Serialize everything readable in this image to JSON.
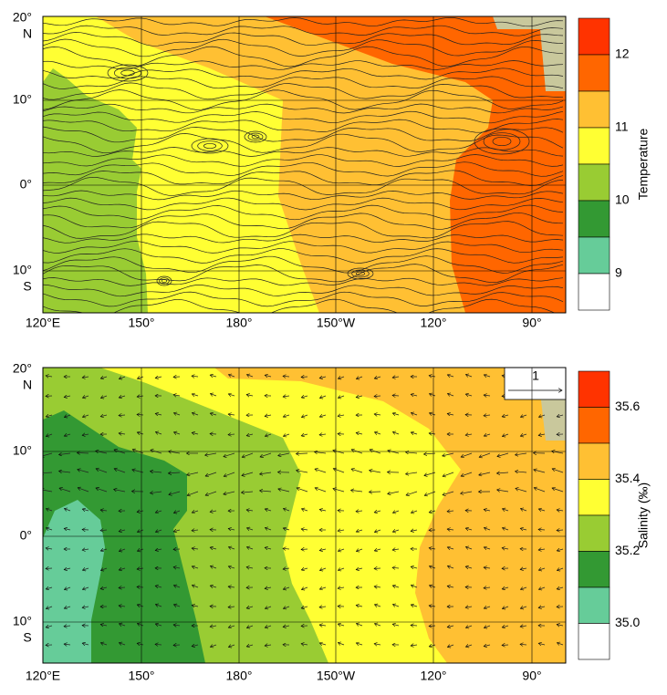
{
  "panels": [
    {
      "x_labels": [
        "120°E",
        "150°",
        "180°",
        "150°W",
        "120°",
        "90°"
      ],
      "y_labels": [
        "20°",
        "10°",
        "0°",
        "10°"
      ],
      "hemisphere_labels": [
        "N",
        "S"
      ],
      "colorbar": {
        "title": "Temperature",
        "tick_labels": [
          "12",
          "11",
          "10",
          "9"
        ],
        "colors": [
          "#ff3300",
          "#ff6600",
          "#ffc033",
          "#ffff33",
          "#99cc33",
          "#339933",
          "#66cc99",
          "#ffffff"
        ]
      }
    },
    {
      "x_labels": [
        "120°E",
        "150°",
        "180°",
        "150°W",
        "120°",
        "90°"
      ],
      "y_labels": [
        "20°",
        "10°",
        "0°",
        "10°"
      ],
      "hemisphere_labels": [
        "N",
        "S"
      ],
      "reference_vector": "1",
      "colorbar": {
        "title": "Salinity (‰)",
        "tick_labels": [
          "35.6",
          "35.4",
          "35.2",
          "35.0"
        ],
        "colors": [
          "#ff3300",
          "#ff6600",
          "#ffc033",
          "#ffff33",
          "#99cc33",
          "#339933",
          "#66cc99",
          "#ffffff"
        ]
      }
    }
  ]
}
